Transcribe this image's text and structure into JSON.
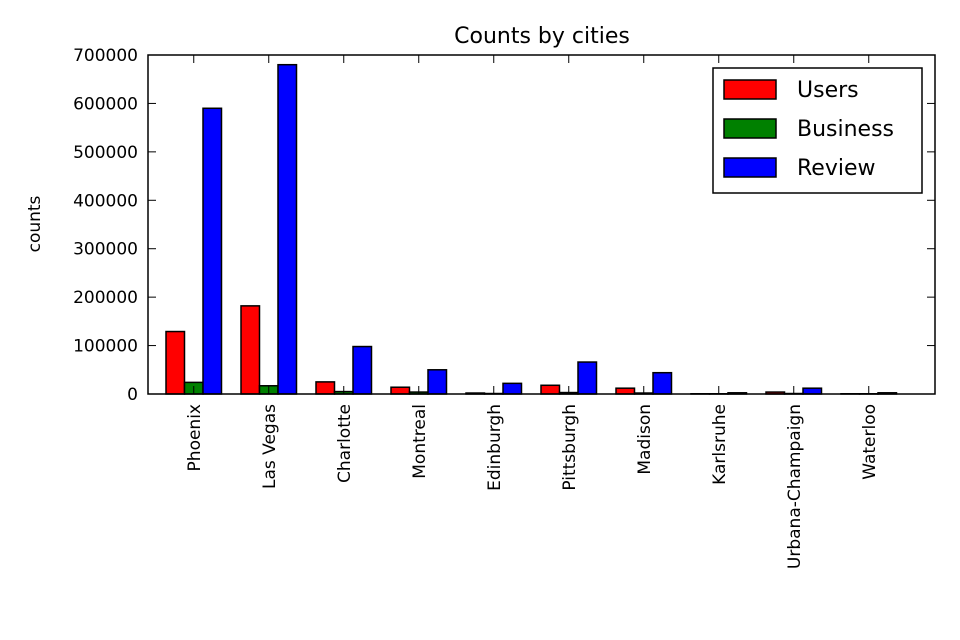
{
  "chart_data": {
    "type": "bar",
    "title": "Counts by cities",
    "xlabel": "",
    "ylabel": "counts",
    "ylim": [
      0,
      700000
    ],
    "yticks": [
      0,
      100000,
      200000,
      300000,
      400000,
      500000,
      600000,
      700000
    ],
    "categories": [
      "Phoenix",
      "Las Vegas",
      "Charlotte",
      "Montreal",
      "Edinburgh",
      "Pittsburgh",
      "Madison",
      "Karlsruhe",
      "Urbana-Champaign",
      "Waterloo"
    ],
    "series": [
      {
        "name": "Users",
        "color": "#ff0000",
        "values": [
          129000,
          182000,
          25000,
          14000,
          2000,
          18000,
          12000,
          500,
          4000,
          500
        ]
      },
      {
        "name": "Business",
        "color": "#008000",
        "values": [
          24000,
          17000,
          5000,
          4000,
          1000,
          3000,
          2000,
          500,
          1000,
          500
        ]
      },
      {
        "name": "Review",
        "color": "#0000ff",
        "values": [
          590000,
          680000,
          98000,
          50000,
          22000,
          66000,
          44000,
          2500,
          12000,
          2500
        ]
      }
    ],
    "legend_position": "top-right",
    "grid": false
  }
}
